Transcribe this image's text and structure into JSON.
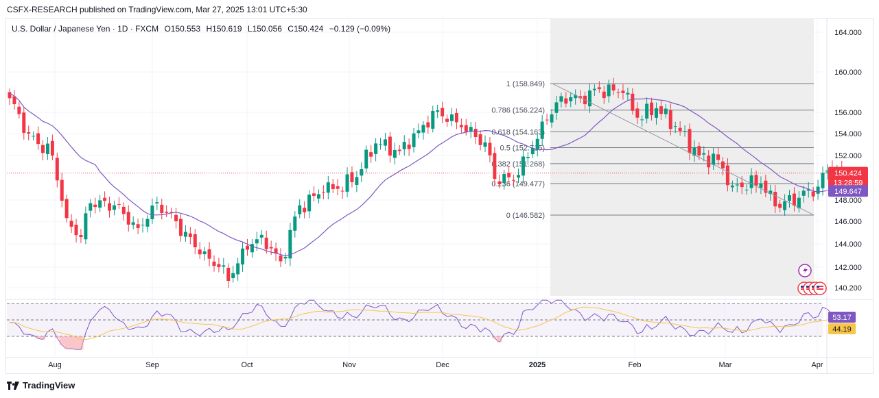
{
  "header": {
    "publisher": "CSFX-RESEARCH published on TradingView.com, Mar 27, 2025 13:01 UTC+5:30"
  },
  "legend": {
    "symbol": "U.S. Dollar / Japanese Yen · 1D · FXCM",
    "open": "O150.553",
    "high": "H150.619",
    "low": "L150.056",
    "close": "C150.424",
    "change": "−0.129 (−0.09%)"
  },
  "footer": {
    "brand": "TradingView"
  },
  "colors": {
    "up": "#089981",
    "down": "#f23645",
    "ma": "#7e57c2",
    "rsi": "#7e57c2",
    "rsi_ma": "#f7c548",
    "grid": "#f0f3fa",
    "fib_zone": "#ebebeb",
    "price_badge": "#f23645",
    "ma_badge": "#7e57c2",
    "rsi_badge": "#7e57c2",
    "rsi_ma_badge": "#f7c548"
  },
  "chart_data": {
    "type": "candlestick",
    "price_axis": {
      "ticks": [
        "164.000",
        "160.000",
        "156.000",
        "154.000",
        "152.000",
        "148.000",
        "146.000",
        "144.000",
        "142.000",
        "140.200"
      ],
      "ylim": [
        138.8,
        165.0
      ]
    },
    "time_axis": {
      "ticks": [
        "Aug",
        "Sep",
        "Oct",
        "Nov",
        "Dec",
        "2025",
        "Feb",
        "Mar",
        "Apr"
      ]
    },
    "last_price": {
      "value": 150.424,
      "label": "150.424",
      "countdown": "13:28:59"
    },
    "ma_value": {
      "value": 149.647,
      "label": "149.647"
    },
    "fibonacci": [
      {
        "level": "1",
        "price": 158.849,
        "label": "1 (158.849)"
      },
      {
        "level": "0.786",
        "price": 156.224,
        "label": "0.786 (156.224)"
      },
      {
        "level": "0.618",
        "price": 154.163,
        "label": "0.618 (154.163)"
      },
      {
        "level": "0.5",
        "price": 152.715,
        "label": "0.5 (152.715)"
      },
      {
        "level": "0.382",
        "price": 151.268,
        "label": "0.382 (151.268)"
      },
      {
        "level": "0.236",
        "price": 149.477,
        "label": "0.236 (149.477)"
      },
      {
        "level": "0",
        "price": 146.582,
        "label": "0 (146.582)"
      }
    ],
    "anchors": [
      {
        "bar": 0,
        "close": 157.4
      },
      {
        "bar": 4,
        "close": 154.0
      },
      {
        "bar": 9,
        "close": 152.0
      },
      {
        "bar": 12,
        "close": 146.3
      },
      {
        "bar": 15,
        "close": 144.6
      },
      {
        "bar": 17,
        "close": 147.7
      },
      {
        "bar": 22,
        "close": 147.5
      },
      {
        "bar": 27,
        "close": 145.4
      },
      {
        "bar": 31,
        "close": 147.8
      },
      {
        "bar": 35,
        "close": 146.0
      },
      {
        "bar": 40,
        "close": 143.1
      },
      {
        "bar": 44,
        "close": 142.0
      },
      {
        "bar": 46,
        "close": 140.8
      },
      {
        "bar": 49,
        "close": 143.6
      },
      {
        "bar": 53,
        "close": 144.8
      },
      {
        "bar": 57,
        "close": 142.5
      },
      {
        "bar": 61,
        "close": 147.5
      },
      {
        "bar": 66,
        "close": 148.7
      },
      {
        "bar": 72,
        "close": 149.6
      },
      {
        "bar": 77,
        "close": 153.1
      },
      {
        "bar": 82,
        "close": 152.4
      },
      {
        "bar": 86,
        "close": 154.3
      },
      {
        "bar": 90,
        "close": 156.2
      },
      {
        "bar": 95,
        "close": 154.6
      },
      {
        "bar": 100,
        "close": 153.2
      },
      {
        "bar": 102,
        "close": 149.9
      },
      {
        "bar": 106,
        "close": 149.8
      },
      {
        "bar": 110,
        "close": 152.7
      },
      {
        "bar": 113,
        "close": 155.3
      },
      {
        "bar": 116,
        "close": 157.6
      },
      {
        "bar": 120,
        "close": 157.4
      },
      {
        "bar": 124,
        "close": 158.3
      },
      {
        "bar": 129,
        "close": 157.9
      },
      {
        "bar": 132,
        "close": 155.5
      },
      {
        "bar": 136,
        "close": 156.4
      },
      {
        "bar": 140,
        "close": 154.7
      },
      {
        "bar": 145,
        "close": 152.0
      },
      {
        "bar": 149,
        "close": 151.6
      },
      {
        "bar": 152,
        "close": 149.3
      },
      {
        "bar": 158,
        "close": 149.5
      },
      {
        "bar": 161,
        "close": 147.4
      },
      {
        "bar": 166,
        "close": 148.2
      },
      {
        "bar": 170,
        "close": 149.2
      },
      {
        "bar": 172,
        "close": 150.7
      },
      {
        "bar": 175,
        "close": 150.424
      }
    ],
    "rsi": {
      "value": 53.17,
      "label": "53.17",
      "ma_value": 44.19,
      "ma_label": "44.19",
      "levels": [
        70,
        50,
        30
      ]
    }
  }
}
